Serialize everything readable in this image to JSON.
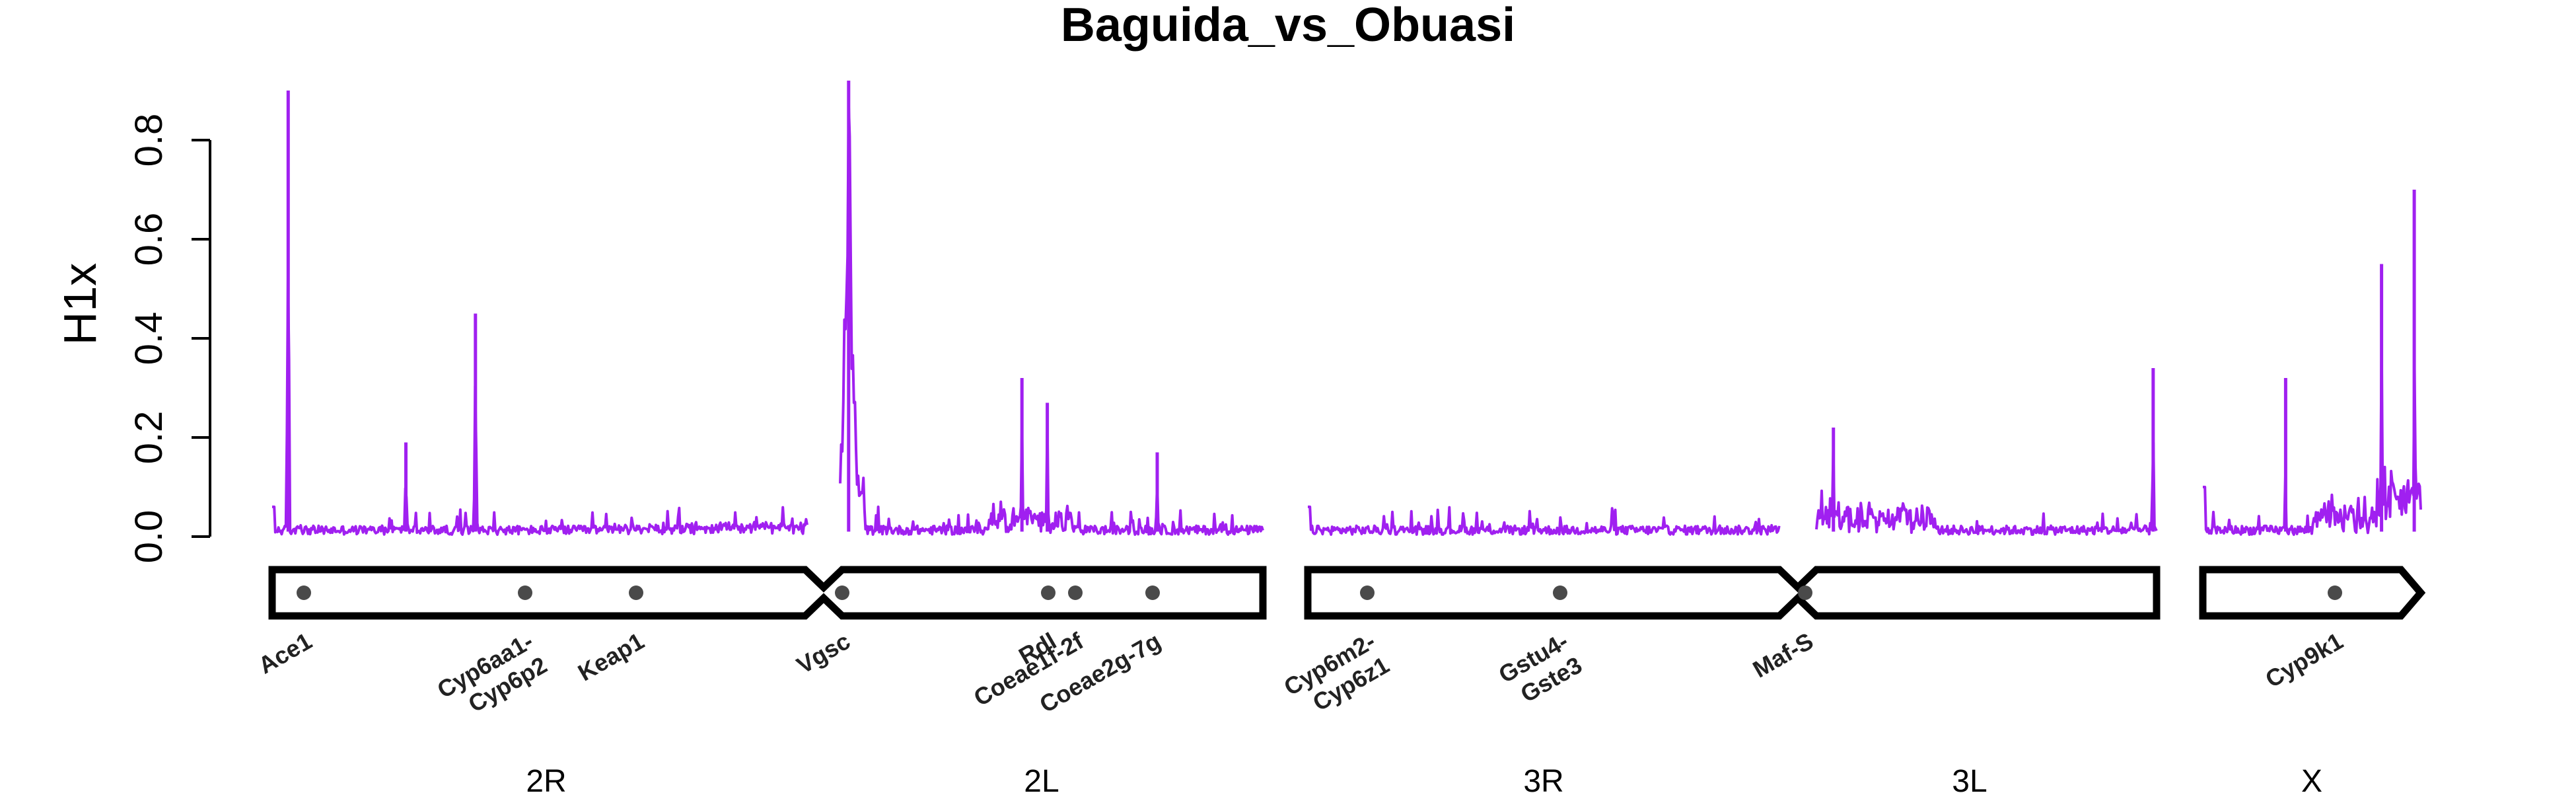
{
  "chart_data": {
    "type": "line",
    "title": "Baguida_vs_Obuasi",
    "ylabel": "H1x",
    "ylim": [
      0,
      0.85
    ],
    "yticks": [
      "0.0",
      "0.2",
      "0.4",
      "0.6",
      "0.8"
    ],
    "line_color": "#a020f0",
    "chromosomes": [
      {
        "name": "2",
        "arms": [
          "2R",
          "2L"
        ]
      },
      {
        "name": "3",
        "arms": [
          "3R",
          "3L"
        ]
      },
      {
        "name": "X",
        "arms": [
          "X"
        ]
      }
    ],
    "genes": [
      {
        "label": "Ace1",
        "arm": "2R"
      },
      {
        "label": "Cyp6aa1-\nCyp6p2",
        "arm": "2R"
      },
      {
        "label": "Keap1",
        "arm": "2R"
      },
      {
        "label": "Vgsc",
        "arm": "2L"
      },
      {
        "label": "Rdl",
        "arm": "2L"
      },
      {
        "label": "Coeae1f-2f",
        "arm": "2L"
      },
      {
        "label": "Coeae2g-7g",
        "arm": "2L"
      },
      {
        "label": "Cyp6m2-\nCyp6z1",
        "arm": "3R"
      },
      {
        "label": "Gstu4-\nGste3",
        "arm": "3R"
      },
      {
        "label": "Maf-S",
        "arm": "3L"
      },
      {
        "label": "Cyp9k1",
        "arm": "X"
      }
    ],
    "peaks": [
      {
        "arm": "2R",
        "position": 0.03,
        "value": 0.9
      },
      {
        "arm": "2R",
        "position": 0.25,
        "value": 0.19
      },
      {
        "arm": "2R",
        "position": 0.38,
        "value": 0.45
      },
      {
        "arm": "2L",
        "position": 0.02,
        "value": 0.92
      },
      {
        "arm": "2L",
        "position": 0.43,
        "value": 0.32
      },
      {
        "arm": "2L",
        "position": 0.49,
        "value": 0.27
      },
      {
        "arm": "2L",
        "position": 0.75,
        "value": 0.17
      },
      {
        "arm": "3L",
        "position": 0.05,
        "value": 0.22
      },
      {
        "arm": "3L",
        "position": 0.99,
        "value": 0.34
      },
      {
        "arm": "X",
        "position": 0.38,
        "value": 0.32
      },
      {
        "arm": "X",
        "position": 0.82,
        "value": 0.55
      },
      {
        "arm": "X",
        "position": 0.97,
        "value": 0.7
      }
    ]
  }
}
